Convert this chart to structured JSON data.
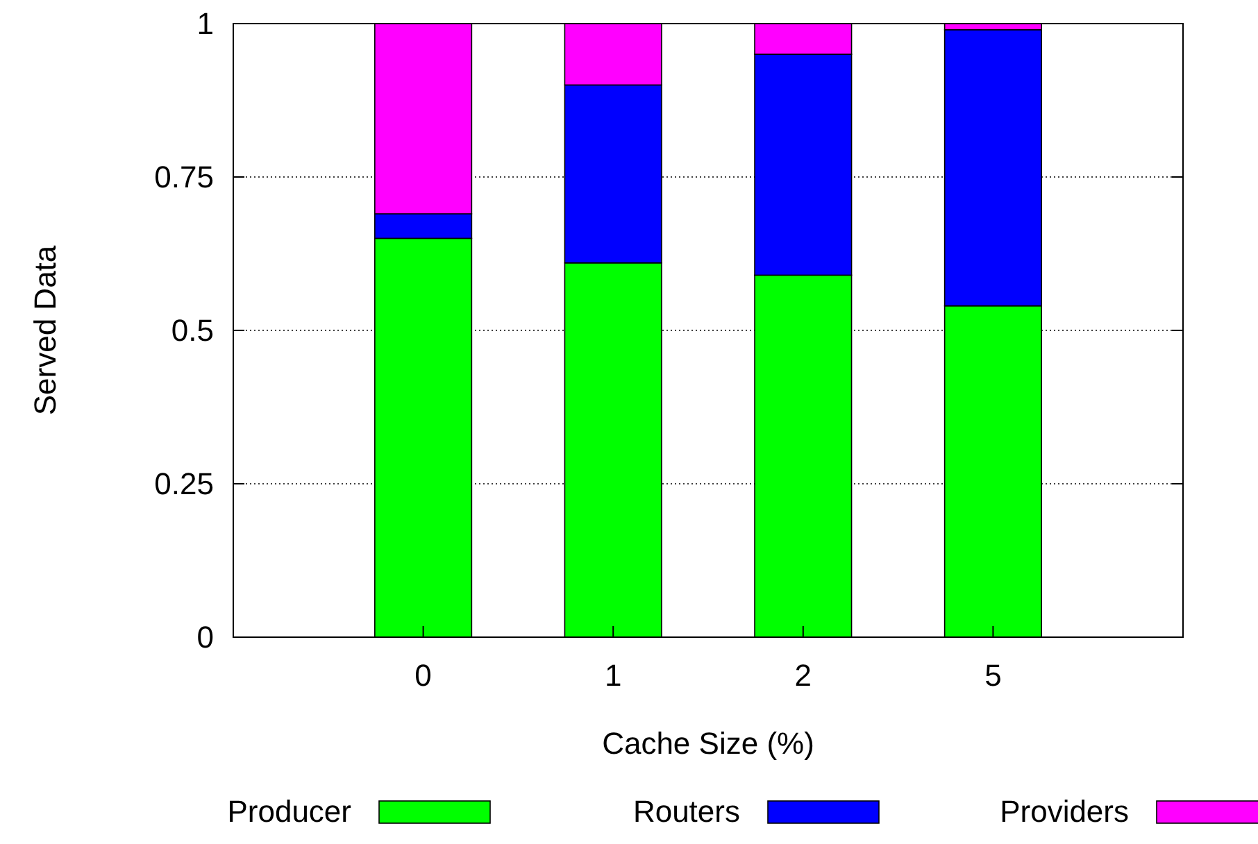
{
  "chart_data": {
    "type": "bar",
    "stacked": true,
    "xlabel": "Cache Size (%)",
    "ylabel": "Served Data",
    "categories": [
      "0",
      "1",
      "2",
      "5"
    ],
    "series": [
      {
        "name": "Producer",
        "color": "#00ff00",
        "values": [
          0.65,
          0.61,
          0.59,
          0.54
        ]
      },
      {
        "name": "Routers",
        "color": "#0000ff",
        "values": [
          0.04,
          0.29,
          0.36,
          0.45
        ]
      },
      {
        "name": "Providers",
        "color": "#ff00ff",
        "values": [
          0.31,
          0.1,
          0.05,
          0.01
        ]
      }
    ],
    "ylim": [
      0,
      1
    ],
    "yticks": [
      0,
      0.25,
      0.5,
      0.75,
      1
    ],
    "grid": "y",
    "legend": "bottom"
  }
}
